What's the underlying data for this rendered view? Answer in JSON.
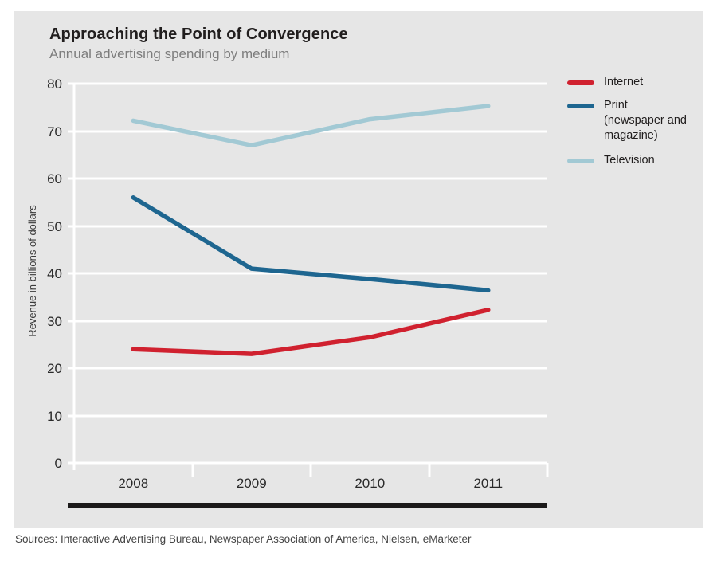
{
  "header": {
    "title": "Approaching the Point of Convergence",
    "subtitle": "Annual advertising spending by medium"
  },
  "source": "Sources: Interactive Advertising Bureau, Newspaper Association of America, Nielsen, eMarketer",
  "colors": {
    "panel_bg": "#e6e6e6",
    "gridlines": "#ffffff",
    "axis_bar": "#1c1a1a",
    "internet": "#d0212f",
    "print": "#1e6690",
    "television": "#a2c9d4"
  },
  "chart_data": {
    "type": "line",
    "title": "Approaching the Point of Convergence",
    "subtitle": "Annual advertising spending by medium",
    "categories": [
      "2008",
      "2009",
      "2010",
      "2011"
    ],
    "series": [
      {
        "name": "internet",
        "label": "Internet",
        "color": "#d0212f",
        "values": [
          24,
          23,
          26.5,
          32.3
        ]
      },
      {
        "name": "print",
        "label": "Print (newspaper and magazine)",
        "color": "#1e6690",
        "values": [
          56,
          41,
          38.8,
          36.4
        ]
      },
      {
        "name": "television",
        "label": "Television",
        "color": "#a2c9d4",
        "values": [
          72.2,
          67,
          72.5,
          75.3
        ]
      }
    ],
    "xlabel": "",
    "ylabel": "Revenue in billions of dollars",
    "ylim": [
      0,
      80
    ],
    "ytick_step": 10,
    "grid": "horizontal white lines every 10 units",
    "legend_position": "top-right outside plot"
  }
}
